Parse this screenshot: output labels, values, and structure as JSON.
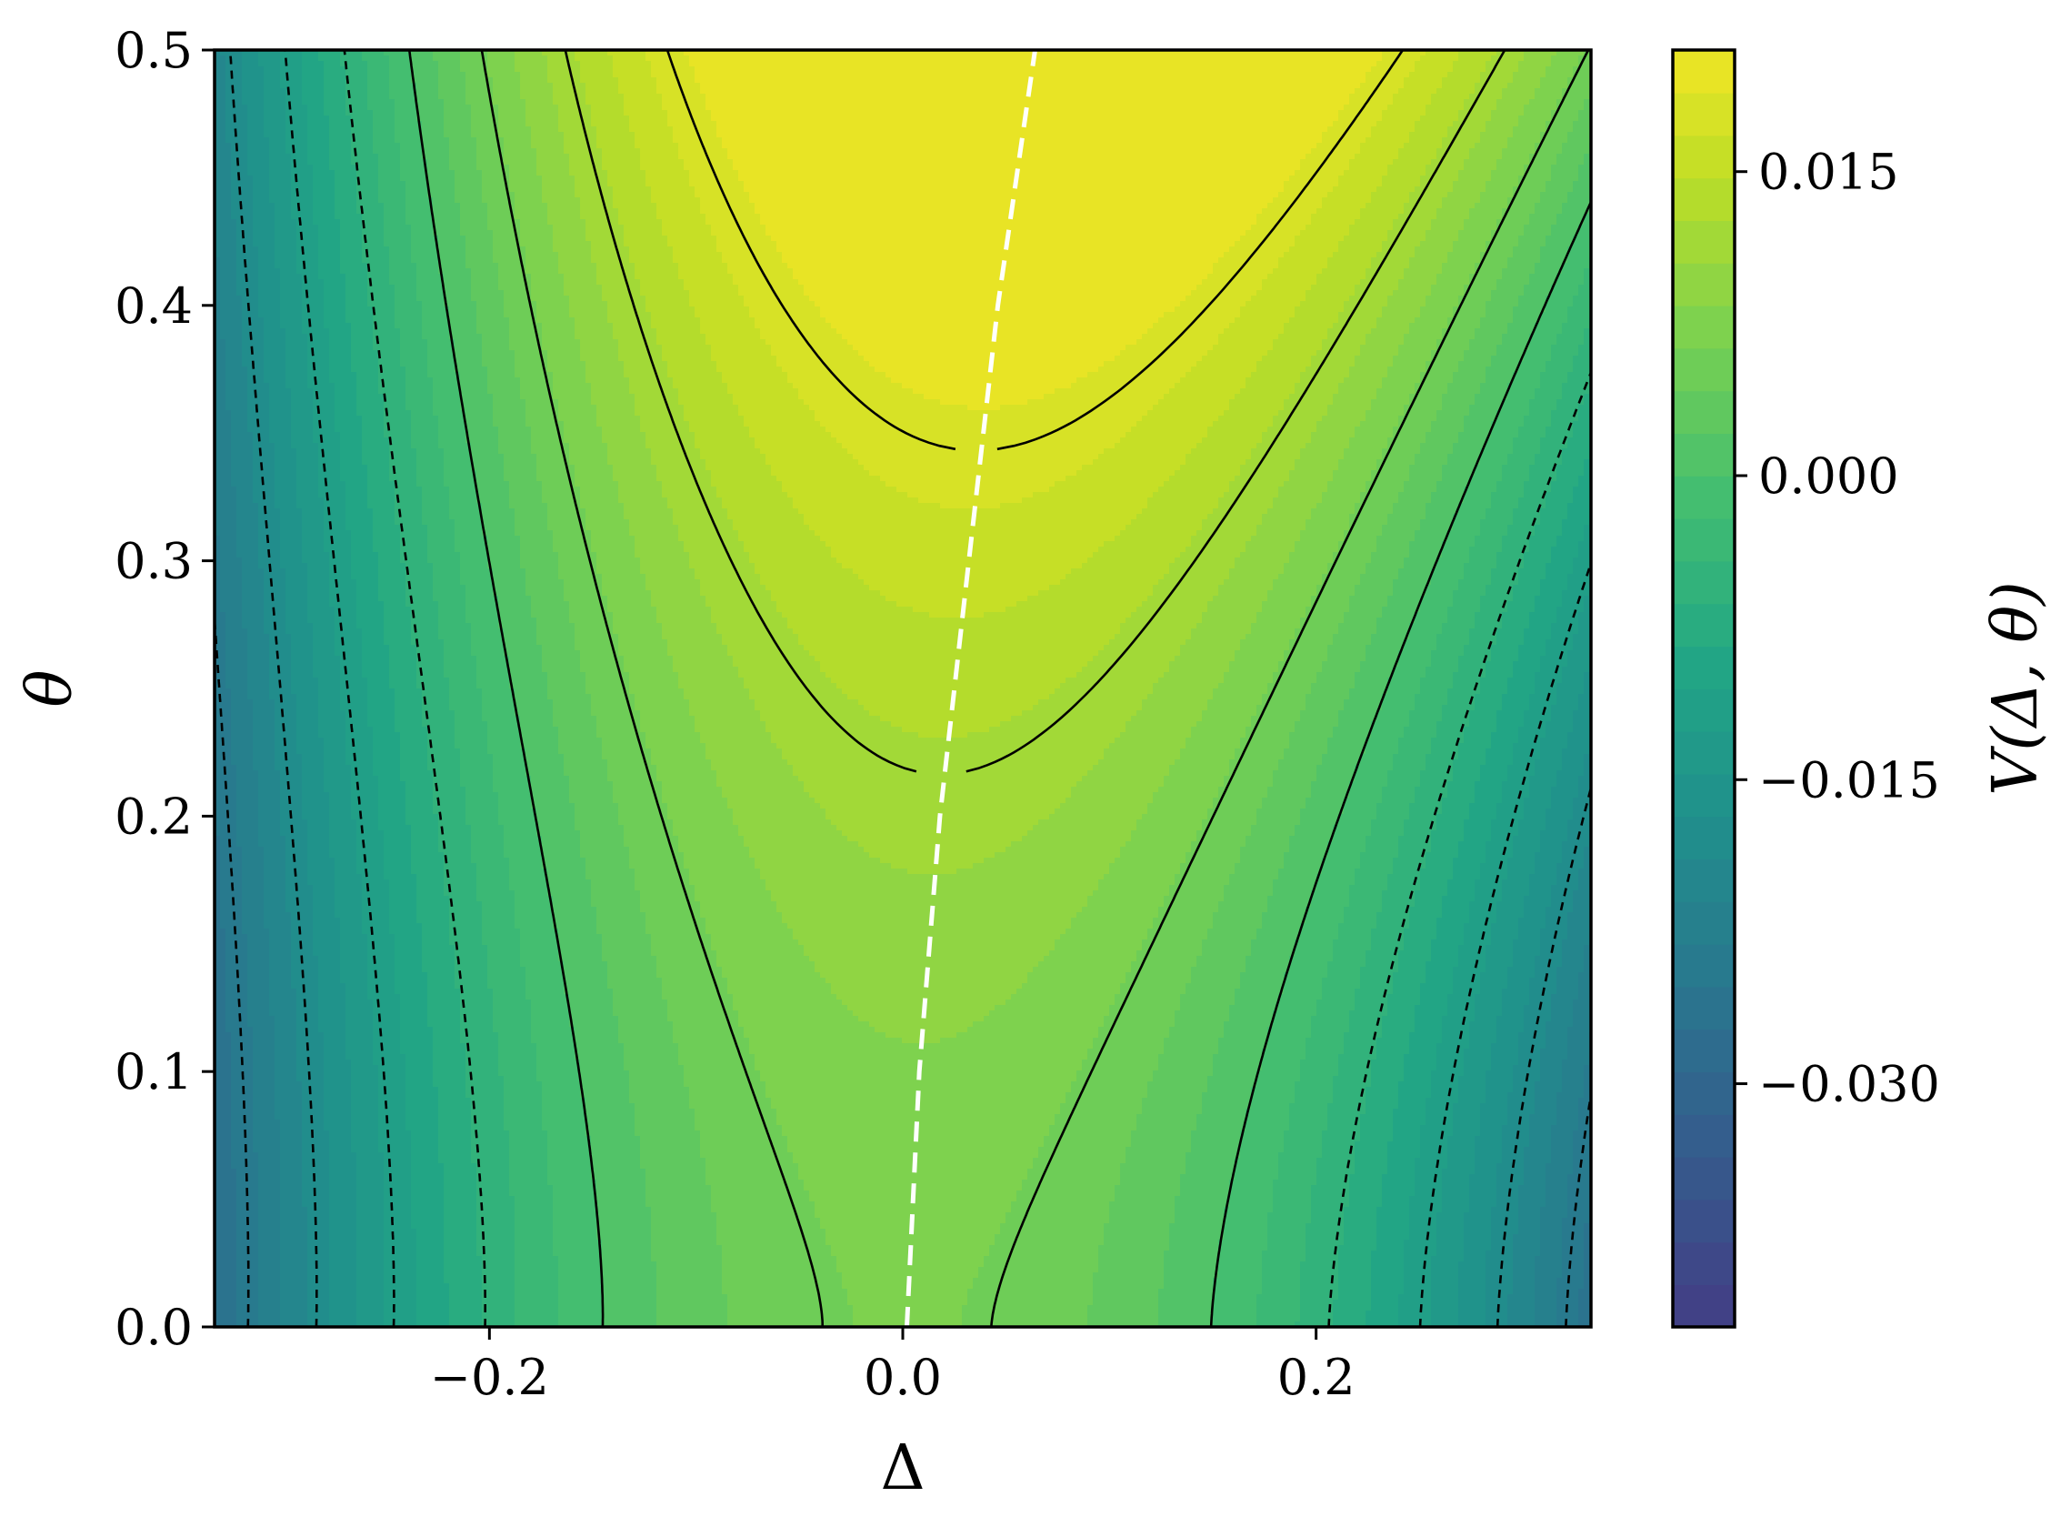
{
  "chart_data": {
    "type": "contour",
    "xlabel": "Δ",
    "ylabel": "θ",
    "xlim": [
      -0.333,
      0.333
    ],
    "ylim": [
      0.0,
      0.5
    ],
    "x_ticks": [
      {
        "value": -0.2,
        "label": "−0.2"
      },
      {
        "value": 0.0,
        "label": "0.0"
      },
      {
        "value": 0.2,
        "label": "0.2"
      }
    ],
    "y_ticks": [
      {
        "value": 0.0,
        "label": "0.0"
      },
      {
        "value": 0.1,
        "label": "0.1"
      },
      {
        "value": 0.2,
        "label": "0.2"
      },
      {
        "value": 0.3,
        "label": "0.3"
      },
      {
        "value": 0.4,
        "label": "0.4"
      },
      {
        "value": 0.5,
        "label": "0.5"
      }
    ],
    "colorbar": {
      "label": "V(Δ, θ)",
      "vmin": -0.042,
      "vmax": 0.021,
      "colormap": "viridis",
      "ticks": [
        {
          "value": 0.015,
          "label": "0.015"
        },
        {
          "value": 0.0,
          "label": "0.000"
        },
        {
          "value": -0.015,
          "label": "−0.015"
        },
        {
          "value": -0.03,
          "label": "−0.030"
        }
      ]
    },
    "contour_lines": {
      "positive_style": "solid",
      "negative_style": "dashed",
      "color": "#000000"
    },
    "ridge_line": {
      "color": "#ffffff",
      "style": "dashed",
      "points": [
        [
          0.002,
          0.0
        ],
        [
          0.008,
          0.1
        ],
        [
          0.018,
          0.2
        ],
        [
          0.032,
          0.3
        ],
        [
          0.046,
          0.4
        ],
        [
          0.064,
          0.5
        ]
      ]
    }
  }
}
